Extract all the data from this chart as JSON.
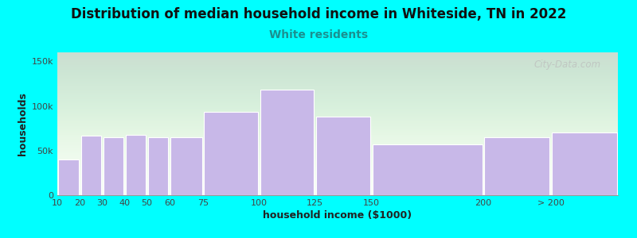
{
  "title": "Distribution of median household income in Whiteside, TN in 2022",
  "subtitle": "White residents",
  "xlabel": "household income ($1000)",
  "ylabel": "households",
  "bg_color": "#00FFFF",
  "bar_color": "#c8b8e8",
  "bar_edge_color": "#ffffff",
  "subtitle_color": "#1a9090",
  "categories": [
    "10",
    "20",
    "30",
    "40",
    "50",
    "60",
    "75",
    "100",
    "125",
    "150",
    "200",
    "> 200"
  ],
  "left_edges": [
    10,
    20,
    30,
    40,
    50,
    60,
    75,
    100,
    125,
    150,
    200,
    230
  ],
  "widths": [
    10,
    10,
    10,
    10,
    10,
    15,
    25,
    25,
    25,
    50,
    30,
    30
  ],
  "values": [
    40000,
    67000,
    65000,
    68000,
    65000,
    65000,
    93000,
    118000,
    88000,
    57000,
    65000,
    70000
  ],
  "tick_positions": [
    10,
    20,
    30,
    40,
    50,
    60,
    75,
    100,
    125,
    150,
    200,
    230
  ],
  "tick_labels": [
    "10",
    "20",
    "30",
    "40",
    "50",
    "60",
    "75",
    "100",
    "125",
    "150",
    "200",
    "> 200"
  ],
  "ylim": [
    0,
    160000
  ],
  "xlim": [
    10,
    260
  ],
  "yticks": [
    0,
    50000,
    100000,
    150000
  ],
  "ytick_labels": [
    "0",
    "50k",
    "100k",
    "150k"
  ],
  "watermark": "City-Data.com",
  "title_fontsize": 12,
  "subtitle_fontsize": 10,
  "axis_label_fontsize": 9,
  "tick_fontsize": 8
}
